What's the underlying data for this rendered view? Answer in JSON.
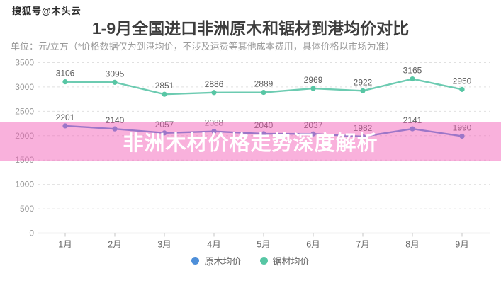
{
  "watermark": "搜狐号@木头云",
  "header": {
    "title": "1-9月全国进口非洲原木和锯材到港均价对比",
    "subtitle": "单位：元/立方（*价格数据仅为到港均价，不涉及运费等其他成本费用，具体价格以市场为准）"
  },
  "banner": {
    "text": "非洲木材价格走势深度解析",
    "background_color": "#F35BB5",
    "background_opacity": 0.48,
    "text_color": "#FFFFFF"
  },
  "chart_data": {
    "type": "line",
    "categories": [
      "1月",
      "2月",
      "3月",
      "4月",
      "5月",
      "6月",
      "7月",
      "8月",
      "9月"
    ],
    "series": [
      {
        "name": "原木均价",
        "color": "#4E8FD9",
        "values": [
          2201,
          2140,
          2057,
          2088,
          2040,
          2037,
          1982,
          2141,
          1990
        ]
      },
      {
        "name": "锯材均价",
        "color": "#57C6A4",
        "line_color": "#6CCBB1",
        "values": [
          3106,
          3095,
          2851,
          2886,
          2889,
          2969,
          2922,
          3165,
          2950
        ]
      }
    ],
    "ylim": [
      0,
      3500
    ],
    "ytick_step": 500,
    "grid": true,
    "grid_style": "dashed",
    "legend_position": "bottom",
    "show_point_labels": true,
    "label_color": "#5c5c5c",
    "axis_label_color": "#999999",
    "category_label_color": "#666666"
  }
}
